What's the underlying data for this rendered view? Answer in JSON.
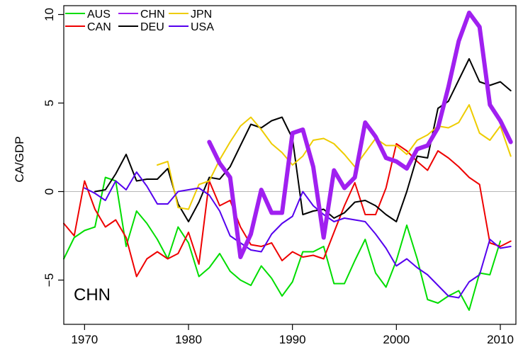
{
  "chart_data": {
    "type": "line",
    "annotation": "CHN",
    "ylabel": "CA/GDP",
    "xlabel": "",
    "xlim": [
      1968,
      2011.5
    ],
    "ylim": [
      -7.5,
      10.5
    ],
    "xticks": [
      1970,
      1980,
      1990,
      2000,
      2010
    ],
    "yticks": [
      -5,
      0,
      5,
      10
    ],
    "ytick_labels": [
      "−5",
      "0",
      "5",
      "10"
    ],
    "reference_line": 0,
    "grid": false,
    "legend_position": "top-left",
    "highlight": "CHN",
    "legend_order": [
      "AUS",
      "CAN",
      "CHN",
      "DEU",
      "JPN",
      "USA"
    ],
    "series": [
      {
        "name": "AUS",
        "color": "#00dd00",
        "x": [
          1968,
          1969,
          1970,
          1971,
          1972,
          1973,
          1974,
          1975,
          1976,
          1977,
          1978,
          1979,
          1980,
          1981,
          1982,
          1983,
          1984,
          1985,
          1986,
          1987,
          1988,
          1989,
          1990,
          1991,
          1992,
          1993,
          1994,
          1995,
          1996,
          1997,
          1998,
          1999,
          2000,
          2001,
          2002,
          2003,
          2004,
          2005,
          2006,
          2007,
          2008,
          2009,
          2010
        ],
        "y": [
          -3.8,
          -2.6,
          -2.2,
          -2.0,
          0.8,
          0.6,
          -3.1,
          -1.1,
          -1.8,
          -2.7,
          -3.8,
          -2.0,
          -2.9,
          -4.8,
          -4.3,
          -3.5,
          -4.5,
          -5.0,
          -5.3,
          -4.2,
          -4.9,
          -5.9,
          -5.1,
          -3.4,
          -3.4,
          -3.1,
          -5.2,
          -5.2,
          -3.9,
          -2.7,
          -4.6,
          -5.4,
          -3.9,
          -1.9,
          -3.8,
          -6.1,
          -6.3,
          -5.9,
          -5.6,
          -6.7,
          -4.6,
          -4.7,
          -2.8
        ]
      },
      {
        "name": "CAN",
        "color": "#ee0000",
        "x": [
          1968,
          1969,
          1970,
          1971,
          1972,
          1973,
          1974,
          1975,
          1976,
          1977,
          1978,
          1979,
          1980,
          1981,
          1982,
          1983,
          1984,
          1985,
          1986,
          1987,
          1988,
          1989,
          1990,
          1991,
          1992,
          1993,
          1994,
          1995,
          1996,
          1997,
          1998,
          1999,
          2000,
          2001,
          2002,
          2003,
          2004,
          2005,
          2006,
          2007,
          2008,
          2009,
          2010,
          2011
        ],
        "y": [
          -1.8,
          -2.5,
          0.6,
          -1.0,
          -2.0,
          -1.6,
          -2.6,
          -4.8,
          -3.8,
          -3.4,
          -3.8,
          -3.5,
          -2.3,
          -4.1,
          0.6,
          -0.8,
          -0.5,
          -2.0,
          -3.0,
          -3.1,
          -2.9,
          -3.9,
          -3.4,
          -3.7,
          -3.6,
          -3.8,
          -2.3,
          -0.8,
          0.5,
          -1.3,
          -1.3,
          0.2,
          2.7,
          2.3,
          1.7,
          1.2,
          2.3,
          1.9,
          1.4,
          0.8,
          0.4,
          -2.9,
          -3.1,
          -2.8
        ]
      },
      {
        "name": "CHN",
        "color": "#a020f0",
        "x": [
          1982,
          1983,
          1984,
          1985,
          1986,
          1987,
          1988,
          1989,
          1990,
          1991,
          1992,
          1993,
          1994,
          1995,
          1996,
          1997,
          1998,
          1999,
          2000,
          2001,
          2002,
          2003,
          2004,
          2005,
          2006,
          2007,
          2008,
          2009,
          2010,
          2011
        ],
        "y": [
          2.8,
          1.6,
          0.8,
          -3.7,
          -2.4,
          0.1,
          -1.2,
          -1.2,
          3.3,
          3.5,
          1.4,
          -2.6,
          1.2,
          0.2,
          0.8,
          3.9,
          3.1,
          1.9,
          1.7,
          1.3,
          2.4,
          2.6,
          3.6,
          5.9,
          8.5,
          10.1,
          9.3,
          4.9,
          4.0,
          2.8
        ]
      },
      {
        "name": "DEU",
        "color": "#000000",
        "x": [
          1971,
          1972,
          1973,
          1974,
          1975,
          1976,
          1977,
          1978,
          1979,
          1980,
          1981,
          1982,
          1983,
          1984,
          1985,
          1986,
          1987,
          1988,
          1989,
          1990,
          1991,
          1992,
          1993,
          1994,
          1995,
          1996,
          1997,
          1998,
          1999,
          2000,
          2001,
          2002,
          2003,
          2004,
          2005,
          2006,
          2007,
          2008,
          2009,
          2010,
          2011
        ],
        "y": [
          0.0,
          0.1,
          1.0,
          2.1,
          0.6,
          0.7,
          0.7,
          1.3,
          -0.7,
          -1.7,
          -0.6,
          0.8,
          0.7,
          1.4,
          2.6,
          3.8,
          3.6,
          4.0,
          4.2,
          3.0,
          -1.3,
          -1.1,
          -1.0,
          -1.5,
          -1.2,
          -0.6,
          -0.5,
          -0.8,
          -1.3,
          -1.7,
          0.0,
          2.0,
          1.9,
          4.7,
          5.1,
          6.3,
          7.5,
          6.2,
          6.0,
          6.2,
          5.7
        ]
      },
      {
        "name": "JPN",
        "color": "#eecc00",
        "x": [
          1977,
          1978,
          1979,
          1980,
          1981,
          1982,
          1983,
          1984,
          1985,
          1986,
          1987,
          1988,
          1989,
          1990,
          1991,
          1992,
          1993,
          1994,
          1995,
          1996,
          1997,
          1998,
          1999,
          2000,
          2001,
          2002,
          2003,
          2004,
          2005,
          2006,
          2007,
          2008,
          2009,
          2010,
          2011
        ],
        "y": [
          1.5,
          1.7,
          -0.9,
          -1.0,
          0.4,
          0.6,
          1.8,
          2.8,
          3.7,
          4.2,
          3.5,
          2.7,
          2.2,
          1.5,
          2.0,
          2.9,
          3.0,
          2.7,
          2.1,
          1.4,
          2.2,
          3.0,
          2.6,
          2.6,
          2.1,
          2.9,
          3.2,
          3.7,
          3.6,
          3.9,
          4.9,
          3.3,
          2.9,
          3.7,
          2.0
        ]
      },
      {
        "name": "USA",
        "color": "#5500ee",
        "x": [
          1970,
          1971,
          1972,
          1973,
          1974,
          1975,
          1976,
          1977,
          1978,
          1979,
          1980,
          1981,
          1982,
          1983,
          1984,
          1985,
          1986,
          1987,
          1988,
          1989,
          1990,
          1991,
          1992,
          1993,
          1994,
          1995,
          1996,
          1997,
          1998,
          1999,
          2000,
          2001,
          2002,
          2003,
          2004,
          2005,
          2006,
          2007,
          2008,
          2009,
          2010,
          2011
        ],
        "y": [
          0.2,
          -0.1,
          -0.5,
          0.6,
          0.1,
          1.1,
          0.3,
          -0.7,
          -0.7,
          0.0,
          0.1,
          0.2,
          -0.2,
          -1.1,
          -2.5,
          -2.9,
          -3.3,
          -3.4,
          -2.4,
          -1.8,
          -1.4,
          0.0,
          -0.8,
          -1.3,
          -1.7,
          -1.5,
          -1.6,
          -1.7,
          -2.4,
          -3.2,
          -4.2,
          -3.8,
          -4.3,
          -4.7,
          -5.3,
          -5.9,
          -6.0,
          -5.1,
          -4.7,
          -2.7,
          -3.2,
          -3.1
        ]
      }
    ]
  }
}
